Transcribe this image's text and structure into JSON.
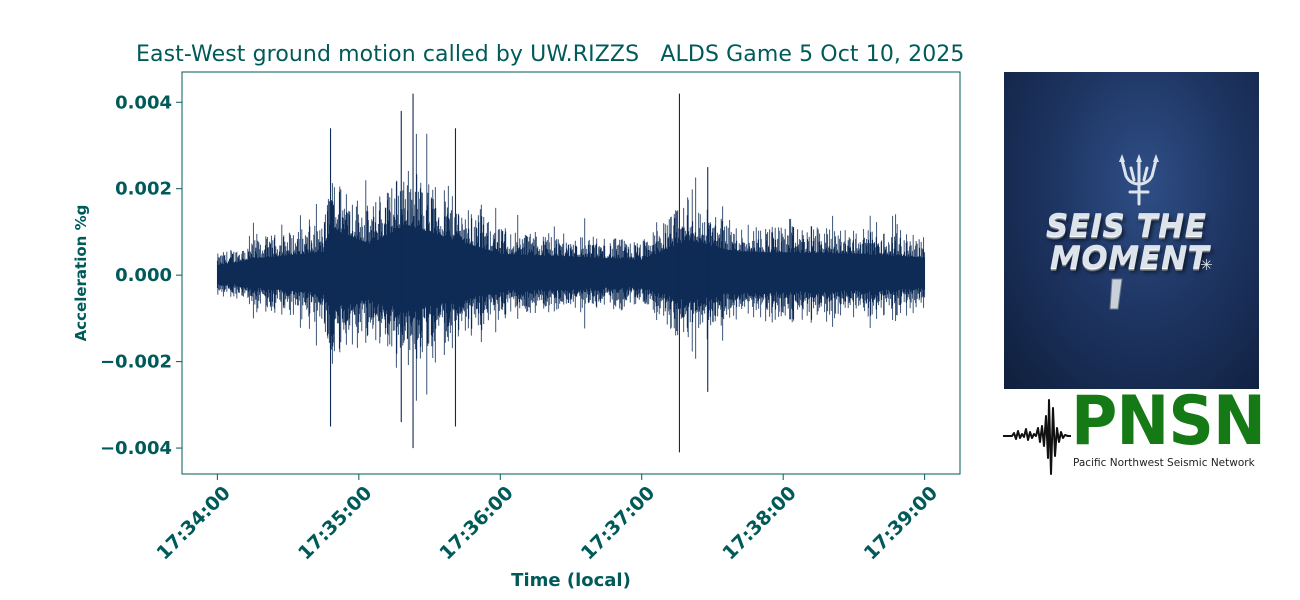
{
  "chart_data": {
    "type": "line",
    "title": "East-West ground motion called by UW.RIZZS   ALDS Game 5 Oct 10, 2025",
    "xlabel": "Time (local)",
    "ylabel": "Acceleration %g",
    "x_ticks": [
      "17:34:00",
      "17:35:00",
      "17:36:00",
      "17:37:00",
      "17:38:00",
      "17:39:00"
    ],
    "y_ticks": [
      "0.004",
      "0.002",
      "0.000",
      "−0.002",
      "−0.004"
    ],
    "xlim": [
      "17:33:45",
      "17:39:15"
    ],
    "ylim": [
      -0.0046,
      0.0047
    ],
    "series": [
      {
        "color": "#0d2b55",
        "start": "17:34:00",
        "end": "17:39:00",
        "envelope": [
          {
            "t": "17:34:00",
            "amplitude": 0.0005
          },
          {
            "t": "17:34:20",
            "amplitude": 0.0009
          },
          {
            "t": "17:34:45",
            "amplitude": 0.0012
          },
          {
            "t": "17:34:48",
            "amplitude": 0.0024
          },
          {
            "t": "17:35:05",
            "amplitude": 0.0016
          },
          {
            "t": "17:35:20",
            "amplitude": 0.0026
          },
          {
            "t": "17:35:38",
            "amplitude": 0.0019
          },
          {
            "t": "17:36:00",
            "amplitude": 0.0011
          },
          {
            "t": "17:36:40",
            "amplitude": 0.0009
          },
          {
            "t": "17:37:00",
            "amplitude": 0.0008
          },
          {
            "t": "17:37:20",
            "amplitude": 0.0018
          },
          {
            "t": "17:37:40",
            "amplitude": 0.0012
          },
          {
            "t": "17:38:30",
            "amplitude": 0.0011
          },
          {
            "t": "17:39:00",
            "amplitude": 0.0009
          }
        ],
        "peaks": [
          {
            "t": "17:34:48",
            "max": 0.0034,
            "min": -0.0035
          },
          {
            "t": "17:35:18",
            "max": 0.0038,
            "min": -0.0034
          },
          {
            "t": "17:35:23",
            "max": 0.0042,
            "min": -0.004
          },
          {
            "t": "17:35:41",
            "max": 0.0034,
            "min": -0.0035
          },
          {
            "t": "17:37:16",
            "max": 0.0042,
            "min": -0.0041
          },
          {
            "t": "17:37:28",
            "max": 0.0025,
            "min": -0.0027
          }
        ]
      }
    ]
  },
  "promo": {
    "line1": "SEIS   THE",
    "line2": "MOMENT",
    "icon": "trident-icon",
    "sparkle_icon": "sparkle-icon"
  },
  "logo": {
    "wordmark": "PNSN",
    "subtitle": "Pacific Northwest Seismic Network",
    "wordmark_color": "#157a16"
  },
  "colors": {
    "text": "#005a5a",
    "trace": "#0d2b55"
  }
}
